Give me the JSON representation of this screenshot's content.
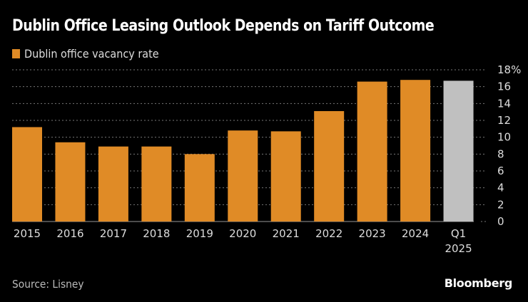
{
  "chart_data": {
    "type": "bar",
    "title": "Dublin Office Leasing Outlook Depends on Tariff Outcome",
    "legend": [
      {
        "name": "Dublin office vacancy rate",
        "color": "#e08b26"
      }
    ],
    "legend_position": "top-left",
    "categories": [
      "2015",
      "2016",
      "2017",
      "2018",
      "2019",
      "2020",
      "2021",
      "2022",
      "2023",
      "2024",
      "Q1 2025"
    ],
    "category_labels": [
      [
        "2015"
      ],
      [
        "2016"
      ],
      [
        "2017"
      ],
      [
        "2018"
      ],
      [
        "2019"
      ],
      [
        "2020"
      ],
      [
        "2021"
      ],
      [
        "2022"
      ],
      [
        "2023"
      ],
      [
        "2024"
      ],
      [
        "Q1",
        "2025"
      ]
    ],
    "series": [
      {
        "name": "Dublin office vacancy rate",
        "values": [
          11.2,
          9.4,
          8.9,
          8.9,
          8.0,
          10.8,
          10.7,
          13.1,
          16.6,
          16.8,
          16.7
        ]
      }
    ],
    "bar_colors": [
      "#e08b26",
      "#e08b26",
      "#e08b26",
      "#e08b26",
      "#e08b26",
      "#e08b26",
      "#e08b26",
      "#e08b26",
      "#e08b26",
      "#e08b26",
      "#c0c0c0"
    ],
    "ylim": [
      0,
      18
    ],
    "yticks": [
      0,
      2,
      4,
      6,
      8,
      10,
      12,
      14,
      16,
      18
    ],
    "ytick_labels": [
      "0",
      "2",
      "4",
      "6",
      "8",
      "10",
      "12",
      "14",
      "16",
      "18%"
    ],
    "y_axis_position": "right",
    "grid": true,
    "xlabel": "",
    "ylabel": "",
    "source": "Source: Lisney",
    "brand": "Bloomberg"
  }
}
